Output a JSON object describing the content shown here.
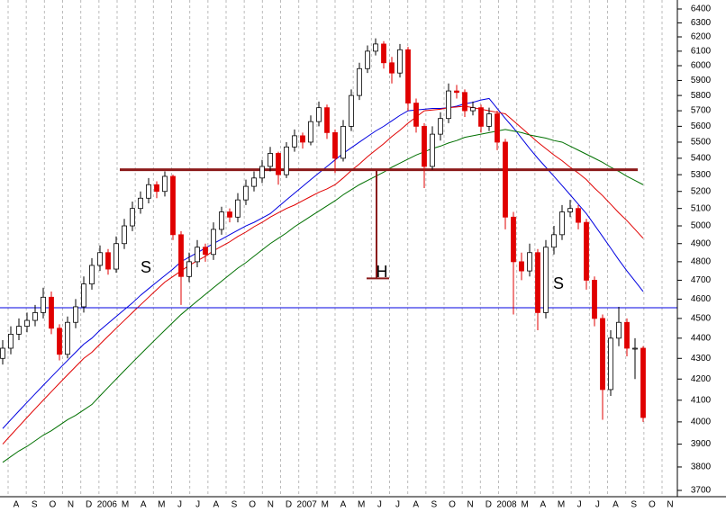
{
  "chart_data": {
    "type": "candlestick",
    "log_scale": true,
    "grid": true,
    "ylim": [
      3700,
      6400
    ],
    "yticks": [
      3700,
      3800,
      3900,
      4000,
      4100,
      4200,
      4300,
      4400,
      4500,
      4600,
      4700,
      4800,
      4900,
      5000,
      5100,
      5200,
      5300,
      5400,
      5500,
      5600,
      5700,
      5800,
      5900,
      6000,
      6100,
      6200,
      6300,
      6400
    ],
    "x_labels": [
      "A",
      "S",
      "O",
      "N",
      "D",
      "2006",
      "M",
      "A",
      "M",
      "J",
      "J",
      "A",
      "S",
      "O",
      "N",
      "D",
      "2007",
      "M",
      "A",
      "M",
      "J",
      "J",
      "A",
      "S",
      "O",
      "N",
      "D",
      "2008",
      "M",
      "A",
      "M",
      "J",
      "J",
      "A",
      "S",
      "O",
      "N"
    ],
    "up_color": "#ffffff",
    "down_color": "#e00000",
    "open": [
      4300,
      4350,
      4420,
      4460,
      4490,
      4530,
      4610,
      4450,
      4320,
      4480,
      4560,
      4680,
      4780,
      4850,
      4760,
      4900,
      5000,
      5100,
      5160,
      5240,
      5200,
      5290,
      4950,
      4720,
      4800,
      4880,
      4840,
      4980,
      5080,
      5050,
      5150,
      5230,
      5280,
      5350,
      5430,
      5300,
      5470,
      5540,
      5500,
      5630,
      5720,
      5560,
      5400,
      5600,
      5800,
      5980,
      6100,
      6150,
      6020,
      5950,
      6110,
      5750,
      5600,
      5350,
      5550,
      5650,
      5830,
      5820,
      5700,
      5720,
      5600,
      5680,
      5500,
      5050,
      4800,
      4750,
      4850,
      4530,
      4880,
      4950,
      5080,
      5100,
      5020,
      4700,
      4500,
      4150,
      4400,
      4480,
      4350,
      4350
    ],
    "high": [
      4390,
      4460,
      4500,
      4530,
      4570,
      4660,
      4640,
      4470,
      4510,
      4600,
      4720,
      4820,
      4890,
      4870,
      4940,
      5040,
      5140,
      5200,
      5280,
      5260,
      5320,
      5300,
      4970,
      4850,
      4920,
      4900,
      5020,
      5110,
      5100,
      5190,
      5270,
      5320,
      5390,
      5470,
      5440,
      5500,
      5580,
      5560,
      5670,
      5760,
      5740,
      5580,
      5640,
      5840,
      6020,
      6140,
      6190,
      6170,
      6060,
      6150,
      6130,
      5780,
      5620,
      5600,
      5690,
      5880,
      5870,
      5840,
      5760,
      5740,
      5720,
      5700,
      5520,
      5080,
      4850,
      4900,
      4870,
      4920,
      5000,
      5120,
      5150,
      5120,
      5040,
      4720,
      4520,
      4440,
      4560,
      4500,
      4400,
      4360
    ],
    "low": [
      4270,
      4320,
      4390,
      4430,
      4460,
      4500,
      4420,
      4290,
      4300,
      4450,
      4530,
      4650,
      4750,
      4730,
      4740,
      4870,
      4970,
      5070,
      5130,
      5160,
      5170,
      4920,
      4570,
      4690,
      4770,
      4800,
      4810,
      4950,
      5020,
      5020,
      5120,
      5200,
      5250,
      5320,
      5240,
      5280,
      5440,
      5460,
      5480,
      5600,
      5520,
      5310,
      5380,
      5570,
      5770,
      5950,
      6070,
      5980,
      5880,
      5920,
      5700,
      5560,
      5220,
      5330,
      5510,
      5620,
      5780,
      5660,
      5670,
      5560,
      5570,
      5450,
      4980,
      4520,
      4700,
      4720,
      4440,
      4500,
      4840,
      4920,
      5050,
      4980,
      4650,
      4460,
      4010,
      4120,
      4360,
      4310,
      4200,
      4000
    ],
    "close": [
      4350,
      4420,
      4460,
      4490,
      4530,
      4610,
      4450,
      4320,
      4480,
      4560,
      4680,
      4780,
      4850,
      4760,
      4900,
      5000,
      5100,
      5160,
      5240,
      5200,
      5290,
      4950,
      4720,
      4800,
      4880,
      4840,
      4980,
      5080,
      5050,
      5150,
      5230,
      5280,
      5350,
      5430,
      5300,
      5470,
      5540,
      5500,
      5630,
      5720,
      5560,
      5400,
      5600,
      5800,
      5980,
      6100,
      6150,
      6020,
      5950,
      6110,
      5750,
      5600,
      5350,
      5550,
      5650,
      5830,
      5820,
      5700,
      5720,
      5600,
      5680,
      5500,
      5050,
      4800,
      4750,
      4850,
      4530,
      4880,
      4950,
      5080,
      5100,
      5020,
      4700,
      4500,
      4150,
      4400,
      4480,
      4350,
      4350,
      4020
    ],
    "lines": [
      {
        "color": "#0000e0",
        "values": [
          3970,
          4010,
          4050,
          4090,
          4130,
          4170,
          4210,
          4250,
          4290,
          4330,
          4370,
          4400,
          4440,
          4475,
          4510,
          4545,
          4580,
          4620,
          4655,
          4690,
          4725,
          4760,
          4800,
          4825,
          4850,
          4875,
          4900,
          4925,
          4950,
          4975,
          5000,
          5020,
          5045,
          5070,
          5110,
          5150,
          5190,
          5230,
          5270,
          5310,
          5350,
          5390,
          5430,
          5465,
          5500,
          5535,
          5570,
          5600,
          5635,
          5670,
          5700,
          5705,
          5710,
          5715,
          5715,
          5720,
          5730,
          5745,
          5755,
          5770,
          5780,
          5715,
          5650,
          5590,
          5525,
          5460,
          5400,
          5345,
          5290,
          5235,
          5180,
          5125,
          5070,
          5005,
          4940,
          4875,
          4810,
          4750,
          4695,
          4640
        ]
      },
      {
        "color": "#e00000",
        "values": [
          3900,
          3940,
          3980,
          4020,
          4060,
          4100,
          4140,
          4180,
          4220,
          4260,
          4300,
          4330,
          4370,
          4410,
          4450,
          4490,
          4530,
          4570,
          4610,
          4650,
          4690,
          4720,
          4750,
          4780,
          4805,
          4830,
          4860,
          4885,
          4910,
          4940,
          4965,
          4995,
          5020,
          5050,
          5075,
          5100,
          5120,
          5145,
          5170,
          5195,
          5215,
          5240,
          5280,
          5325,
          5365,
          5410,
          5450,
          5490,
          5535,
          5575,
          5620,
          5660,
          5700,
          5705,
          5710,
          5720,
          5725,
          5730,
          5720,
          5710,
          5700,
          5690,
          5680,
          5635,
          5590,
          5545,
          5500,
          5460,
          5420,
          5385,
          5345,
          5310,
          5270,
          5220,
          5175,
          5125,
          5075,
          5030,
          4980,
          4930
        ]
      },
      {
        "color": "#007000",
        "values": [
          3820,
          3845,
          3870,
          3890,
          3915,
          3940,
          3960,
          3985,
          4010,
          4030,
          4055,
          4080,
          4120,
          4160,
          4200,
          4240,
          4280,
          4320,
          4360,
          4400,
          4440,
          4480,
          4520,
          4555,
          4590,
          4625,
          4660,
          4695,
          4730,
          4765,
          4795,
          4830,
          4865,
          4900,
          4930,
          4960,
          4995,
          5025,
          5055,
          5085,
          5115,
          5145,
          5180,
          5210,
          5240,
          5265,
          5290,
          5315,
          5345,
          5370,
          5395,
          5420,
          5440,
          5460,
          5475,
          5495,
          5510,
          5530,
          5540,
          5550,
          5560,
          5570,
          5580,
          5570,
          5560,
          5545,
          5535,
          5525,
          5510,
          5500,
          5475,
          5450,
          5425,
          5400,
          5375,
          5345,
          5320,
          5290,
          5265,
          5240
        ]
      }
    ],
    "hlines": [
      {
        "value": 5330,
        "color": "#8b1a1a"
      },
      {
        "value": 4555,
        "color": "#0000e0"
      }
    ],
    "measure": {
      "from": 5330,
      "to": 4710,
      "color": "#8b1a1a"
    },
    "annotations": [
      "S",
      "H",
      "S"
    ]
  }
}
